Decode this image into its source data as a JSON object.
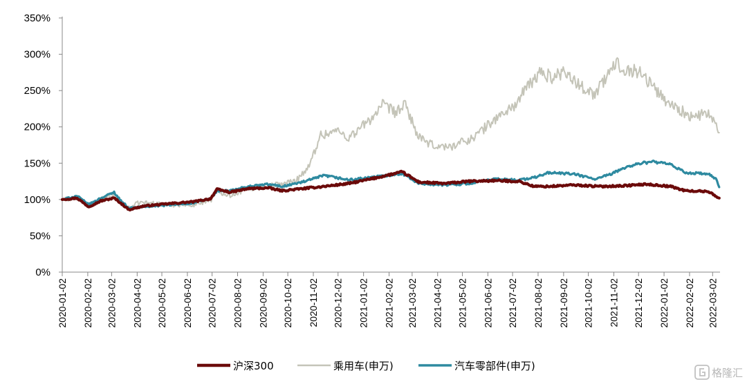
{
  "chart_data": {
    "type": "line",
    "title": "",
    "xlabel": "",
    "ylabel": "",
    "ylim": [
      0,
      3.5
    ],
    "x_tick_labels": [
      "2020-01-02",
      "2020-02-02",
      "2020-03-02",
      "2020-04-02",
      "2020-05-02",
      "2020-06-02",
      "2020-07-02",
      "2020-08-02",
      "2020-09-02",
      "2020-10-02",
      "2020-11-02",
      "2020-12-02",
      "2021-01-02",
      "2021-02-02",
      "2021-03-02",
      "2021-04-02",
      "2021-05-02",
      "2021-06-02",
      "2021-07-02",
      "2021-08-02",
      "2021-09-02",
      "2021-10-02",
      "2021-11-02",
      "2021-12-02",
      "2022-01-02",
      "2022-02-02",
      "2022-03-02"
    ],
    "y_tick_labels": [
      "0%",
      "50%",
      "100%",
      "150%",
      "200%",
      "250%",
      "300%",
      "350%"
    ],
    "grid": false,
    "legend_position": "bottom",
    "series": [
      {
        "name": "沪深300",
        "color": "#6b0a0a",
        "points": [
          [
            "2020-01-02",
            1.0
          ],
          [
            "2020-01-20",
            1.02
          ],
          [
            "2020-02-03",
            0.9
          ],
          [
            "2020-02-18",
            0.98
          ],
          [
            "2020-03-05",
            1.02
          ],
          [
            "2020-03-12",
            0.96
          ],
          [
            "2020-03-23",
            0.86
          ],
          [
            "2020-04-10",
            0.91
          ],
          [
            "2020-05-08",
            0.94
          ],
          [
            "2020-06-10",
            0.97
          ],
          [
            "2020-06-30",
            1.01
          ],
          [
            "2020-07-08",
            1.14
          ],
          [
            "2020-07-24",
            1.1
          ],
          [
            "2020-08-15",
            1.15
          ],
          [
            "2020-09-08",
            1.16
          ],
          [
            "2020-09-25",
            1.12
          ],
          [
            "2020-10-20",
            1.15
          ],
          [
            "2020-11-15",
            1.18
          ],
          [
            "2020-12-15",
            1.22
          ],
          [
            "2021-01-10",
            1.28
          ],
          [
            "2021-02-18",
            1.38
          ],
          [
            "2021-03-10",
            1.24
          ],
          [
            "2021-04-10",
            1.22
          ],
          [
            "2021-05-10",
            1.25
          ],
          [
            "2021-06-10",
            1.26
          ],
          [
            "2021-07-10",
            1.25
          ],
          [
            "2021-07-28",
            1.18
          ],
          [
            "2021-08-15",
            1.18
          ],
          [
            "2021-09-15",
            1.2
          ],
          [
            "2021-10-15",
            1.18
          ],
          [
            "2021-11-15",
            1.19
          ],
          [
            "2021-12-12",
            1.21
          ],
          [
            "2022-01-10",
            1.18
          ],
          [
            "2022-01-28",
            1.12
          ],
          [
            "2022-02-25",
            1.11
          ],
          [
            "2022-03-10",
            1.02
          ]
        ]
      },
      {
        "name": "乘用车(申万)",
        "color": "#c4c4b8",
        "points": [
          [
            "2020-01-02",
            0.99
          ],
          [
            "2020-01-20",
            1.03
          ],
          [
            "2020-02-03",
            0.92
          ],
          [
            "2020-02-18",
            1.0
          ],
          [
            "2020-03-05",
            1.05
          ],
          [
            "2020-03-12",
            0.97
          ],
          [
            "2020-03-23",
            0.88
          ],
          [
            "2020-04-05",
            0.96
          ],
          [
            "2020-05-08",
            0.93
          ],
          [
            "2020-06-10",
            0.93
          ],
          [
            "2020-07-01",
            1.0
          ],
          [
            "2020-07-08",
            1.12
          ],
          [
            "2020-07-24",
            1.06
          ],
          [
            "2020-08-15",
            1.15
          ],
          [
            "2020-09-08",
            1.18
          ],
          [
            "2020-10-10",
            1.25
          ],
          [
            "2020-10-28",
            1.45
          ],
          [
            "2020-11-10",
            1.88
          ],
          [
            "2020-12-01",
            1.95
          ],
          [
            "2020-12-15",
            1.85
          ],
          [
            "2021-01-10",
            2.1
          ],
          [
            "2021-01-25",
            2.3
          ],
          [
            "2021-02-10",
            2.2
          ],
          [
            "2021-02-22",
            2.3
          ],
          [
            "2021-03-10",
            1.85
          ],
          [
            "2021-03-25",
            1.75
          ],
          [
            "2021-04-15",
            1.72
          ],
          [
            "2021-05-15",
            1.85
          ],
          [
            "2021-06-10",
            2.1
          ],
          [
            "2021-07-05",
            2.3
          ],
          [
            "2021-07-20",
            2.55
          ],
          [
            "2021-08-05",
            2.75
          ],
          [
            "2021-08-20",
            2.68
          ],
          [
            "2021-09-05",
            2.78
          ],
          [
            "2021-09-15",
            2.62
          ],
          [
            "2021-10-10",
            2.45
          ],
          [
            "2021-10-25",
            2.7
          ],
          [
            "2021-11-05",
            2.88
          ],
          [
            "2021-11-15",
            2.8
          ],
          [
            "2021-12-05",
            2.75
          ],
          [
            "2021-12-20",
            2.55
          ],
          [
            "2022-01-05",
            2.35
          ],
          [
            "2022-01-20",
            2.25
          ],
          [
            "2022-02-05",
            2.12
          ],
          [
            "2022-02-25",
            2.2
          ],
          [
            "2022-03-10",
            1.92
          ]
        ]
      },
      {
        "name": "汽车零部件(申万)",
        "color": "#2e8aa0",
        "points": [
          [
            "2020-01-02",
            1.0
          ],
          [
            "2020-01-20",
            1.05
          ],
          [
            "2020-02-03",
            0.93
          ],
          [
            "2020-02-18",
            1.02
          ],
          [
            "2020-03-05",
            1.1
          ],
          [
            "2020-03-12",
            1.0
          ],
          [
            "2020-03-23",
            0.88
          ],
          [
            "2020-04-10",
            0.9
          ],
          [
            "2020-05-08",
            0.92
          ],
          [
            "2020-06-10",
            0.95
          ],
          [
            "2020-07-01",
            1.02
          ],
          [
            "2020-07-08",
            1.12
          ],
          [
            "2020-07-24",
            1.12
          ],
          [
            "2020-08-15",
            1.18
          ],
          [
            "2020-09-08",
            1.21
          ],
          [
            "2020-09-25",
            1.18
          ],
          [
            "2020-10-20",
            1.24
          ],
          [
            "2020-11-15",
            1.33
          ],
          [
            "2020-12-15",
            1.27
          ],
          [
            "2021-01-10",
            1.3
          ],
          [
            "2021-02-18",
            1.36
          ],
          [
            "2021-03-10",
            1.22
          ],
          [
            "2021-04-10",
            1.2
          ],
          [
            "2021-05-10",
            1.22
          ],
          [
            "2021-06-10",
            1.28
          ],
          [
            "2021-07-10",
            1.27
          ],
          [
            "2021-07-28",
            1.3
          ],
          [
            "2021-08-15",
            1.37
          ],
          [
            "2021-09-15",
            1.35
          ],
          [
            "2021-10-10",
            1.28
          ],
          [
            "2021-10-28",
            1.34
          ],
          [
            "2021-11-15",
            1.44
          ],
          [
            "2021-12-05",
            1.5
          ],
          [
            "2021-12-20",
            1.52
          ],
          [
            "2022-01-10",
            1.48
          ],
          [
            "2022-01-28",
            1.37
          ],
          [
            "2022-02-25",
            1.35
          ],
          [
            "2022-03-06",
            1.28
          ],
          [
            "2022-03-10",
            1.17
          ]
        ]
      }
    ]
  },
  "watermark": {
    "icon": "gelonghui-logo-icon",
    "text": "格隆汇"
  }
}
